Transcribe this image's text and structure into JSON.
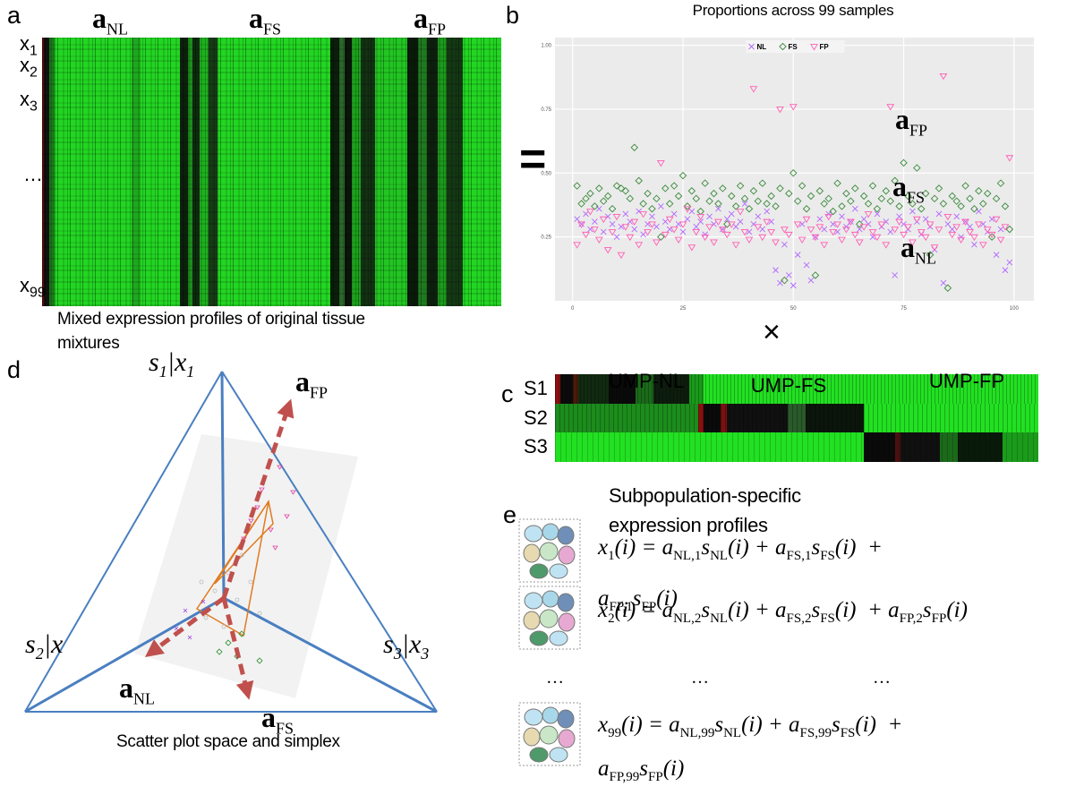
{
  "panel_a": {
    "label": "a",
    "col_labels": [
      {
        "base": "a",
        "sub": "NL"
      },
      {
        "base": "a",
        "sub": "FS"
      },
      {
        "base": "a",
        "sub": "FP"
      }
    ],
    "row_labels": [
      {
        "base": "x",
        "sub": "1"
      },
      {
        "base": "x",
        "sub": "2"
      },
      {
        "base": "x",
        "sub": "3"
      },
      "…",
      {
        "base": "x",
        "sub": "99"
      }
    ],
    "caption": "Mixed expression profiles of original tissue mixtures"
  },
  "panel_b": {
    "label": "b",
    "operator": "=",
    "times": "×"
  },
  "chart_data": {
    "type": "scatter",
    "title": "Proportions across 99 samples",
    "annotations": [
      {
        "base": "a",
        "sub": "FP"
      },
      {
        "base": "a",
        "sub": "FS"
      },
      {
        "base": "a",
        "sub": "NL"
      }
    ],
    "x": [
      1,
      2,
      3,
      4,
      5,
      6,
      7,
      8,
      9,
      10,
      11,
      12,
      13,
      14,
      15,
      16,
      17,
      18,
      19,
      20,
      21,
      22,
      23,
      24,
      25,
      26,
      27,
      28,
      29,
      30,
      31,
      32,
      33,
      34,
      35,
      36,
      37,
      38,
      39,
      40,
      41,
      42,
      43,
      44,
      45,
      46,
      47,
      48,
      49,
      50,
      51,
      52,
      53,
      54,
      55,
      56,
      57,
      58,
      59,
      60,
      61,
      62,
      63,
      64,
      65,
      66,
      67,
      68,
      69,
      70,
      71,
      72,
      73,
      74,
      75,
      76,
      77,
      78,
      79,
      80,
      81,
      82,
      83,
      84,
      85,
      86,
      87,
      88,
      89,
      90,
      91,
      92,
      93,
      94,
      95,
      96,
      97,
      98,
      99
    ],
    "series": [
      {
        "name": "NL",
        "color": "#b266ff",
        "marker": "x",
        "values": [
          0.32,
          0.3,
          0.34,
          0.28,
          0.31,
          0.36,
          0.27,
          0.33,
          0.3,
          0.25,
          0.29,
          0.34,
          0.31,
          0.28,
          0.35,
          0.26,
          0.3,
          0.33,
          0.29,
          0.37,
          0.31,
          0.28,
          0.34,
          0.3,
          0.27,
          0.32,
          0.35,
          0.29,
          0.31,
          0.26,
          0.33,
          0.3,
          0.36,
          0.28,
          0.32,
          0.34,
          0.29,
          0.31,
          0.38,
          0.27,
          0.3,
          0.33,
          0.28,
          0.35,
          0.31,
          0.12,
          0.07,
          0.22,
          0.1,
          0.06,
          0.18,
          0.3,
          0.14,
          0.08,
          0.25,
          0.32,
          0.28,
          0.34,
          0.3,
          0.27,
          0.33,
          0.29,
          0.31,
          0.36,
          0.28,
          0.32,
          0.3,
          0.25,
          0.34,
          0.29,
          0.31,
          0.27,
          0.1,
          0.33,
          0.3,
          0.28,
          0.35,
          0.31,
          0.26,
          0.32,
          0.29,
          0.2,
          0.34,
          0.07,
          0.3,
          0.28,
          0.33,
          0.25,
          0.31,
          0.29,
          0.22,
          0.35,
          0.3,
          0.27,
          0.32,
          0.18,
          0.28,
          0.12,
          0.15
        ]
      },
      {
        "name": "FS",
        "color": "#3a8a3a",
        "marker": "diamond",
        "values": [
          0.45,
          0.38,
          0.4,
          0.42,
          0.37,
          0.44,
          0.39,
          0.41,
          0.36,
          0.45,
          0.44,
          0.43,
          0.4,
          0.6,
          0.47,
          0.38,
          0.42,
          0.36,
          0.4,
          0.25,
          0.44,
          0.38,
          0.45,
          0.41,
          0.49,
          0.37,
          0.43,
          0.4,
          0.35,
          0.46,
          0.39,
          0.42,
          0.38,
          0.44,
          0.3,
          0.41,
          0.37,
          0.45,
          0.4,
          0.36,
          0.43,
          0.39,
          0.46,
          0.38,
          0.41,
          0.37,
          0.44,
          0.08,
          0.42,
          0.5,
          0.39,
          0.45,
          0.36,
          0.41,
          0.1,
          0.43,
          0.38,
          0.4,
          0.35,
          0.46,
          0.37,
          0.42,
          0.39,
          0.44,
          0.3,
          0.41,
          0.38,
          0.45,
          0.36,
          0.4,
          0.43,
          0.39,
          0.47,
          0.37,
          0.54,
          0.41,
          0.38,
          0.52,
          0.36,
          0.42,
          0.18,
          0.4,
          0.44,
          0.38,
          0.05,
          0.41,
          0.39,
          0.37,
          0.45,
          0.4,
          0.36,
          0.43,
          0.38,
          0.42,
          0.25,
          0.4,
          0.46,
          0.37,
          0.28
        ]
      },
      {
        "name": "FP",
        "color": "#ff5fb4",
        "marker": "triangle-down",
        "values": [
          0.22,
          0.3,
          0.26,
          0.35,
          0.28,
          0.24,
          0.32,
          0.2,
          0.27,
          0.33,
          0.18,
          0.29,
          0.25,
          0.31,
          0.22,
          0.34,
          0.27,
          0.3,
          0.23,
          0.54,
          0.26,
          0.32,
          0.28,
          0.24,
          0.3,
          0.36,
          0.21,
          0.27,
          0.33,
          0.25,
          0.29,
          0.23,
          0.31,
          0.28,
          0.26,
          0.3,
          0.22,
          0.35,
          0.27,
          0.24,
          0.83,
          0.29,
          0.25,
          0.31,
          0.27,
          0.23,
          0.75,
          0.28,
          0.26,
          0.76,
          0.3,
          0.24,
          0.32,
          0.28,
          0.25,
          0.29,
          0.22,
          0.33,
          0.27,
          0.3,
          0.24,
          0.28,
          0.31,
          0.26,
          0.23,
          0.29,
          0.34,
          0.27,
          0.25,
          0.3,
          0.22,
          0.76,
          0.28,
          0.31,
          0.26,
          0.29,
          0.23,
          0.32,
          0.27,
          0.25,
          0.3,
          0.21,
          0.28,
          0.88,
          0.33,
          0.26,
          0.29,
          0.24,
          0.31,
          0.27,
          0.25,
          0.3,
          0.22,
          0.28,
          0.26,
          0.32,
          0.24,
          0.29,
          0.56
        ]
      }
    ],
    "xlim": [
      -4,
      104.5
    ],
    "ylim": [
      0,
      1.03
    ],
    "xticks": [
      0,
      25,
      50,
      75,
      100
    ],
    "yticks": [
      0.25,
      {
        "value": 0.5,
        "label": "0.50"
      },
      0.75,
      {
        "value": 1,
        "label": "1.00"
      }
    ],
    "grid": true,
    "panel_color": "#ebebeb",
    "legend": "top"
  },
  "panel_c": {
    "label": "c",
    "col_labels": [
      "UMP-NL",
      "UMP-FS",
      "UMP-FP"
    ],
    "row_labels": [
      "S1",
      "S2",
      "S3"
    ],
    "caption": "Subpopulation-specific expression profiles"
  },
  "panel_d": {
    "label": "d",
    "vertices": [
      [
        {
          "base": "s",
          "sub": "1"
        },
        "|",
        {
          "base": "x",
          "sub": "1"
        }
      ],
      [
        {
          "base": "s",
          "sub": "2"
        },
        "|",
        "x"
      ],
      [
        {
          "base": "s",
          "sub": "3"
        },
        "|",
        {
          "base": "x",
          "sub": "3"
        }
      ]
    ],
    "arrows": [
      {
        "base": "a",
        "sub": "FP"
      },
      {
        "base": "a",
        "sub": "NL"
      },
      {
        "base": "a",
        "sub": "FS"
      }
    ],
    "caption": "Scatter plot space and simplex"
  },
  "panel_e": {
    "label": "e",
    "equations": [
      [
        [
          {
            "base": "x",
            "sub": "1"
          },
          "(i) = ",
          {
            "base": "a",
            "sub": "NL,1"
          },
          {
            "base": "s",
            "sub": "NL"
          },
          "(i) + ",
          {
            "base": "a",
            "sub": "FS,1"
          },
          {
            "base": "s",
            "sub": "FS"
          },
          "(i)  +"
        ],
        [
          {
            "base": "a",
            "sub": "FP,1"
          },
          {
            "base": "s",
            "sub": "FP"
          },
          "(i)"
        ]
      ],
      [
        [
          {
            "base": "x",
            "sub": "2"
          },
          "(i) = ",
          {
            "base": "a",
            "sub": "NL,2"
          },
          {
            "base": "s",
            "sub": "NL"
          },
          "(i) + ",
          {
            "base": "a",
            "sub": "FS,2"
          },
          {
            "base": "s",
            "sub": "FS"
          },
          "(i)  + ",
          {
            "base": "a",
            "sub": "FP,2"
          },
          {
            "base": "s",
            "sub": "FP"
          },
          "(i)"
        ]
      ],
      [
        [
          {
            "base": "x",
            "sub": "99"
          },
          "(i) = ",
          {
            "base": "a",
            "sub": "NL,99"
          },
          {
            "base": "s",
            "sub": "NL"
          },
          "(i) + ",
          {
            "base": "a",
            "sub": "FS,99"
          },
          {
            "base": "s",
            "sub": "FS"
          },
          "(i)  +"
        ],
        [
          {
            "base": "a",
            "sub": "FP,99"
          },
          {
            "base": "s",
            "sub": "FP"
          },
          "(i)"
        ]
      ]
    ],
    "ellipsis": [
      "…",
      "…",
      "…"
    ]
  }
}
